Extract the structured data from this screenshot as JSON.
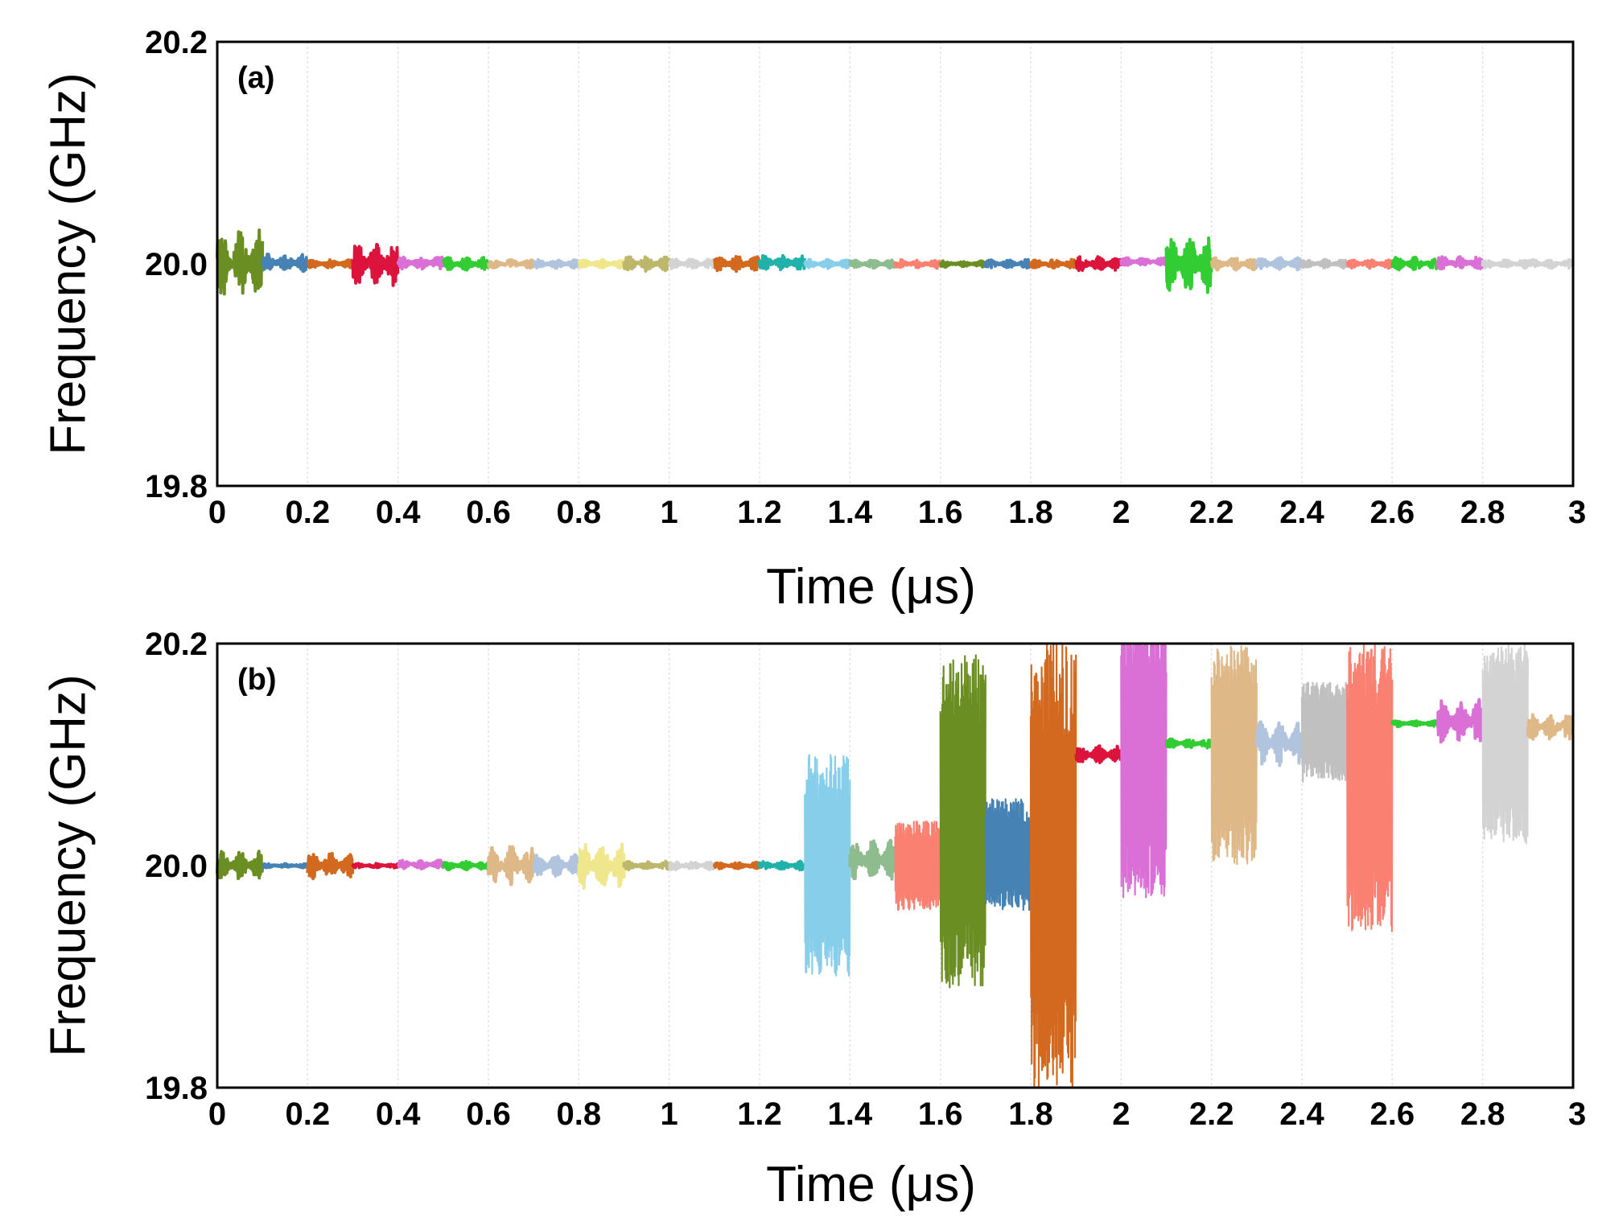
{
  "chart_data": [
    {
      "type": "line",
      "panel": "(a)",
      "xlabel": "Time (μs)",
      "ylabel": "Frequency (GHz)",
      "xlim": [
        0,
        3
      ],
      "ylim": [
        19.8,
        20.2
      ],
      "x_ticks": [
        "0",
        "0.2",
        "0.4",
        "0.6",
        "0.8",
        "1",
        "1.2",
        "1.4",
        "1.6",
        "1.8",
        "2",
        "2.2",
        "2.4",
        "2.6",
        "2.8",
        "3"
      ],
      "y_ticks": [
        "19.8",
        "20.0",
        "20.2"
      ],
      "grid": "vertical",
      "segment_width_us": 0.1,
      "series": [
        {
          "name": "segment 1",
          "color": "#6b8e23",
          "start": 0.0,
          "center": 20.0,
          "amplitude": 0.032
        },
        {
          "name": "segment 2",
          "color": "#4682b4",
          "start": 0.1,
          "center": 20.001,
          "amplitude": 0.008
        },
        {
          "name": "segment 3",
          "color": "#d2691e",
          "start": 0.2,
          "center": 20.0,
          "amplitude": 0.004
        },
        {
          "name": "segment 4",
          "color": "#dc143c",
          "start": 0.3,
          "center": 20.0,
          "amplitude": 0.02
        },
        {
          "name": "segment 5",
          "color": "#da70d6",
          "start": 0.4,
          "center": 20.001,
          "amplitude": 0.006
        },
        {
          "name": "segment 6",
          "color": "#32cd32",
          "start": 0.5,
          "center": 20.0,
          "amplitude": 0.006
        },
        {
          "name": "segment 7",
          "color": "#deb887",
          "start": 0.6,
          "center": 20.0,
          "amplitude": 0.004
        },
        {
          "name": "segment 8",
          "color": "#b0c4de",
          "start": 0.7,
          "center": 20.0,
          "amplitude": 0.004
        },
        {
          "name": "segment 9",
          "color": "#f0e68c",
          "start": 0.8,
          "center": 20.0,
          "amplitude": 0.004
        },
        {
          "name": "segment 10",
          "color": "#bdb76b",
          "start": 0.9,
          "center": 20.0,
          "amplitude": 0.007
        },
        {
          "name": "segment 11",
          "color": "#d3d3d3",
          "start": 1.0,
          "center": 20.0,
          "amplitude": 0.005
        },
        {
          "name": "segment 12",
          "color": "#d2691e",
          "start": 1.1,
          "center": 20.0,
          "amplitude": 0.007
        },
        {
          "name": "segment 13",
          "color": "#20b2aa",
          "start": 1.2,
          "center": 20.001,
          "amplitude": 0.007
        },
        {
          "name": "segment 14",
          "color": "#87ceeb",
          "start": 1.3,
          "center": 20.0,
          "amplitude": 0.004
        },
        {
          "name": "segment 15",
          "color": "#8fbc8f",
          "start": 1.4,
          "center": 20.0,
          "amplitude": 0.004
        },
        {
          "name": "segment 16",
          "color": "#fa8072",
          "start": 1.5,
          "center": 20.0,
          "amplitude": 0.004
        },
        {
          "name": "segment 17",
          "color": "#6b8e23",
          "start": 1.6,
          "center": 20.0,
          "amplitude": 0.003
        },
        {
          "name": "segment 18",
          "color": "#4682b4",
          "start": 1.7,
          "center": 20.0,
          "amplitude": 0.004
        },
        {
          "name": "segment 19",
          "color": "#d2691e",
          "start": 1.8,
          "center": 20.0,
          "amplitude": 0.004
        },
        {
          "name": "segment 20",
          "color": "#dc143c",
          "start": 1.9,
          "center": 20.0,
          "amplitude": 0.007
        },
        {
          "name": "segment 21",
          "color": "#da70d6",
          "start": 2.0,
          "center": 20.002,
          "amplitude": 0.004
        },
        {
          "name": "segment 22",
          "color": "#32cd32",
          "start": 2.1,
          "center": 20.0,
          "amplitude": 0.028
        },
        {
          "name": "segment 23",
          "color": "#deb887",
          "start": 2.2,
          "center": 20.0,
          "amplitude": 0.006
        },
        {
          "name": "segment 24",
          "color": "#b0c4de",
          "start": 2.3,
          "center": 20.0,
          "amplitude": 0.006
        },
        {
          "name": "segment 25",
          "color": "#c0c0c0",
          "start": 2.4,
          "center": 20.0,
          "amplitude": 0.004
        },
        {
          "name": "segment 26",
          "color": "#fa8072",
          "start": 2.5,
          "center": 20.0,
          "amplitude": 0.004
        },
        {
          "name": "segment 27",
          "color": "#32cd32",
          "start": 2.6,
          "center": 20.0,
          "amplitude": 0.006
        },
        {
          "name": "segment 28",
          "color": "#da70d6",
          "start": 2.7,
          "center": 20.001,
          "amplitude": 0.006
        },
        {
          "name": "segment 29",
          "color": "#d3d3d3",
          "start": 2.8,
          "center": 20.0,
          "amplitude": 0.004
        },
        {
          "name": "segment 30",
          "color": "#d3d3d3",
          "start": 2.9,
          "center": 20.0,
          "amplitude": 0.004
        }
      ]
    },
    {
      "type": "line",
      "panel": "(b)",
      "xlabel": "Time (μs)",
      "ylabel": "Frequency (GHz)",
      "xlim": [
        0,
        3
      ],
      "ylim": [
        19.8,
        20.2
      ],
      "x_ticks": [
        "0",
        "0.2",
        "0.4",
        "0.6",
        "0.8",
        "1",
        "1.2",
        "1.4",
        "1.6",
        "1.8",
        "2",
        "2.2",
        "2.4",
        "2.6",
        "2.8",
        "3"
      ],
      "y_ticks": [
        "19.8",
        "20.0",
        "20.2"
      ],
      "grid": "vertical",
      "segment_width_us": 0.1,
      "series": [
        {
          "name": "segment 1",
          "color": "#6b8e23",
          "start": 0.0,
          "center": 20.0,
          "amplitude": 0.013
        },
        {
          "name": "segment 2",
          "color": "#4682b4",
          "start": 0.1,
          "center": 20.0,
          "amplitude": 0.002
        },
        {
          "name": "segment 3",
          "color": "#d2691e",
          "start": 0.2,
          "center": 20.0,
          "amplitude": 0.012
        },
        {
          "name": "segment 4",
          "color": "#dc143c",
          "start": 0.3,
          "center": 20.0,
          "amplitude": 0.002
        },
        {
          "name": "segment 5",
          "color": "#da70d6",
          "start": 0.4,
          "center": 20.001,
          "amplitude": 0.004
        },
        {
          "name": "segment 6",
          "color": "#32cd32",
          "start": 0.5,
          "center": 20.0,
          "amplitude": 0.004
        },
        {
          "name": "segment 7",
          "color": "#deb887",
          "start": 0.6,
          "center": 20.0,
          "amplitude": 0.018
        },
        {
          "name": "segment 8",
          "color": "#b0c4de",
          "start": 0.7,
          "center": 20.0,
          "amplitude": 0.01
        },
        {
          "name": "segment 9",
          "color": "#f0e68c",
          "start": 0.8,
          "center": 20.0,
          "amplitude": 0.022
        },
        {
          "name": "segment 10",
          "color": "#bdb76b",
          "start": 0.9,
          "center": 20.0,
          "amplitude": 0.004
        },
        {
          "name": "segment 11",
          "color": "#d3d3d3",
          "start": 1.0,
          "center": 20.0,
          "amplitude": 0.004
        },
        {
          "name": "segment 12",
          "color": "#d2691e",
          "start": 1.1,
          "center": 20.0,
          "amplitude": 0.003
        },
        {
          "name": "segment 13",
          "color": "#20b2aa",
          "start": 1.2,
          "center": 20.0,
          "amplitude": 0.004
        },
        {
          "name": "segment 14",
          "color": "#87ceeb",
          "start": 1.3,
          "center": 20.0,
          "amplitude": 0.1
        },
        {
          "name": "segment 15",
          "color": "#8fbc8f",
          "start": 1.4,
          "center": 20.005,
          "amplitude": 0.018
        },
        {
          "name": "segment 16",
          "color": "#fa8072",
          "start": 1.5,
          "center": 20.0,
          "amplitude": 0.04
        },
        {
          "name": "segment 17",
          "color": "#6b8e23",
          "start": 1.6,
          "center": 20.04,
          "amplitude": 0.15
        },
        {
          "name": "segment 18",
          "color": "#4682b4",
          "start": 1.7,
          "center": 20.01,
          "amplitude": 0.05
        },
        {
          "name": "segment 19",
          "color": "#d2691e",
          "start": 1.8,
          "center": 20.0,
          "amplitude": 0.2
        },
        {
          "name": "segment 20",
          "color": "#dc143c",
          "start": 1.9,
          "center": 20.1,
          "amplitude": 0.008
        },
        {
          "name": "segment 21",
          "color": "#da70d6",
          "start": 2.0,
          "center": 20.1,
          "amplitude": 0.13
        },
        {
          "name": "segment 22",
          "color": "#32cd32",
          "start": 2.1,
          "center": 20.11,
          "amplitude": 0.004
        },
        {
          "name": "segment 23",
          "color": "#deb887",
          "start": 2.2,
          "center": 20.1,
          "amplitude": 0.1
        },
        {
          "name": "segment 24",
          "color": "#b0c4de",
          "start": 2.3,
          "center": 20.11,
          "amplitude": 0.02
        },
        {
          "name": "segment 25",
          "color": "#c0c0c0",
          "start": 2.4,
          "center": 20.12,
          "amplitude": 0.045
        },
        {
          "name": "segment 26",
          "color": "#fa8072",
          "start": 2.5,
          "center": 20.07,
          "amplitude": 0.13
        },
        {
          "name": "segment 27",
          "color": "#32cd32",
          "start": 2.6,
          "center": 20.128,
          "amplitude": 0.003
        },
        {
          "name": "segment 28",
          "color": "#da70d6",
          "start": 2.7,
          "center": 20.13,
          "amplitude": 0.02
        },
        {
          "name": "segment 29",
          "color": "#d3d3d3",
          "start": 2.8,
          "center": 20.11,
          "amplitude": 0.09
        },
        {
          "name": "segment 30",
          "color": "#deb887",
          "start": 2.9,
          "center": 20.125,
          "amplitude": 0.012
        }
      ]
    }
  ]
}
